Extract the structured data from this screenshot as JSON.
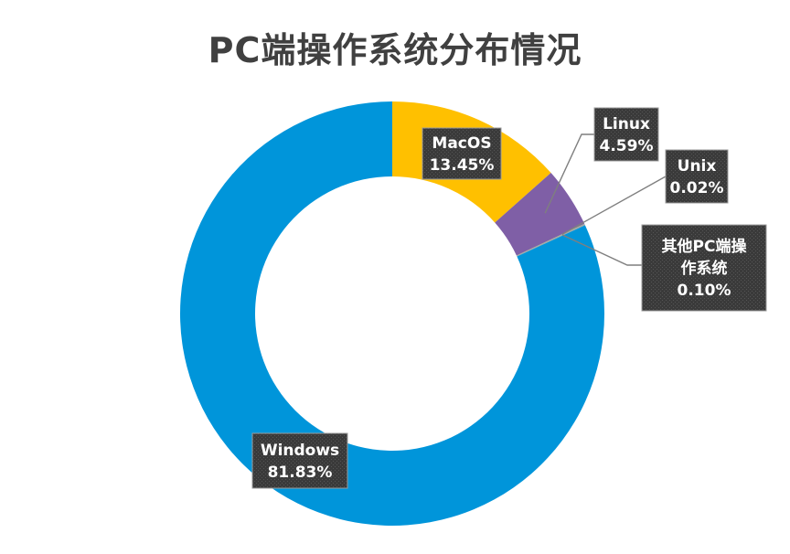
{
  "chart_data": {
    "type": "pie",
    "title": "PC端操作系统分布情况",
    "donut": true,
    "slices": [
      {
        "name": "MacOS",
        "value": 13.45,
        "label": "13.45%",
        "color": "#FFC000"
      },
      {
        "name": "Linux",
        "value": 4.59,
        "label": "4.59%",
        "color": "#7F5FA6"
      },
      {
        "name": "Unix",
        "value": 0.02,
        "label": "0.02%",
        "color": "#70AD47"
      },
      {
        "name": "其他PC端操作系统",
        "name_lines": [
          "其他PC端操",
          "作系统"
        ],
        "value": 0.1,
        "label": "0.10%",
        "color": "#A5A5A5"
      },
      {
        "name": "Windows",
        "value": 81.83,
        "label": "81.83%",
        "color": "#0095DA"
      }
    ]
  },
  "colors": {
    "label_box_fill": "#3C3C3C",
    "label_box_border": "#9B9B9B",
    "leader_line": "#7F7F7F",
    "title_text": "#404040"
  }
}
